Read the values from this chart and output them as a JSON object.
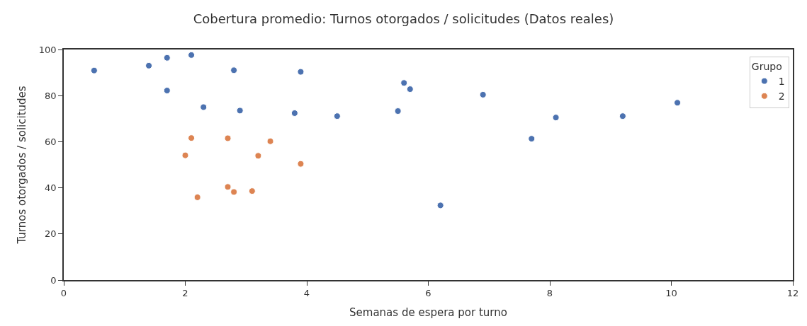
{
  "chart_data": {
    "type": "scatter",
    "title": "Cobertura promedio: Turnos otorgados / solicitudes (Datos reales)",
    "xlabel": "Semanas de espera por turno",
    "ylabel": "Turnos otorgados / solicitudes",
    "legend_title": "Grupo",
    "legend": "top right",
    "grid": false,
    "marker": "circle",
    "xlim": [
      0,
      12
    ],
    "xticks": [
      0,
      2,
      4,
      6,
      8,
      10,
      12
    ],
    "ylim": [
      0,
      100
    ],
    "yticks": [
      0,
      20,
      40,
      60,
      80,
      100
    ],
    "series": [
      {
        "name": "1",
        "color": "#4c72b0",
        "x": [
          0.5,
          1.4,
          1.7,
          2.1,
          2.8,
          3.9,
          1.7,
          2.3,
          2.9,
          3.8,
          4.5,
          5.5,
          5.6,
          5.7,
          6.2,
          6.9,
          7.7,
          8.1,
          9.2,
          10.1
        ],
        "values": [
          90.9,
          93.0,
          96.4,
          97.6,
          91.0,
          90.3,
          82.2,
          75.0,
          73.5,
          72.4,
          71.1,
          73.3,
          85.5,
          82.8,
          32.4,
          80.4,
          61.3,
          70.5,
          71.1,
          76.9
        ]
      },
      {
        "name": "2",
        "color": "#dd8452",
        "x": [
          2.1,
          2.7,
          3.4,
          2.0,
          3.2,
          3.9,
          2.7,
          2.8,
          3.1,
          2.2
        ],
        "values": [
          61.6,
          61.5,
          60.2,
          54.1,
          53.9,
          50.4,
          40.4,
          38.2,
          38.6,
          35.9
        ]
      }
    ]
  }
}
